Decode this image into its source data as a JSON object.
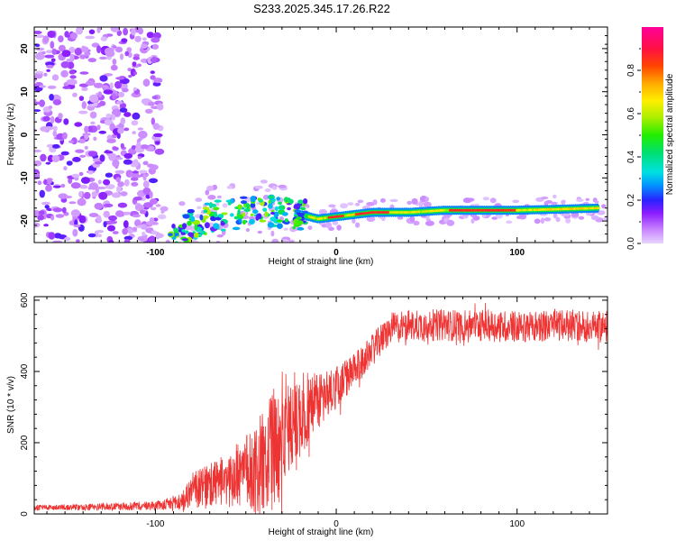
{
  "title": "S233.2025.345.17.26.R22",
  "chart_data": [
    {
      "type": "heatmap",
      "name": "spectrogram",
      "xlabel": "Height of straight line (km)",
      "ylabel": "Frequency (Hz)",
      "xlim": [
        -167,
        150
      ],
      "ylim": [
        -25,
        25
      ],
      "xticks": [
        -100,
        0,
        100
      ],
      "xtick_labels": [
        "-100",
        "0",
        "100"
      ],
      "yticks": [
        -20,
        -10,
        0,
        10,
        20
      ],
      "ytick_labels": [
        "-20",
        "-10",
        "0",
        "10",
        "20"
      ],
      "ridge": {
        "x": [
          -90,
          -80,
          -70,
          -60,
          -50,
          -40,
          -30,
          -20,
          -10,
          0,
          20,
          40,
          60,
          80,
          100,
          120,
          145
        ],
        "frequency": [
          -24,
          -21,
          -19,
          -18.5,
          -18,
          -17.5,
          -18,
          -18.5,
          -19.5,
          -19,
          -18,
          -18,
          -17.5,
          -17.5,
          -17.5,
          -17.3,
          -17
        ]
      },
      "colorbar": {
        "label": "Normalized spectral amplitude",
        "range": [
          0,
          1
        ],
        "ticks": [
          0.0,
          0.2,
          0.4,
          0.6,
          0.8
        ],
        "tick_labels": [
          "0.0",
          "0.2",
          "0.4",
          "0.6",
          "0.8"
        ]
      }
    },
    {
      "type": "line",
      "name": "snr",
      "xlabel": "Height of straight line (km)",
      "ylabel": "SNR (10 * v/v)",
      "xlim": [
        -167,
        150
      ],
      "ylim": [
        0,
        610
      ],
      "xticks": [
        -100,
        0,
        100
      ],
      "xtick_labels": [
        "-100",
        "0",
        "100"
      ],
      "yticks": [
        0,
        200,
        400,
        600
      ],
      "ytick_labels": [
        "0",
        "200",
        "400",
        "600"
      ],
      "color": "#ee3333",
      "series": [
        {
          "name": "SNR",
          "x": [
            -167,
            -150,
            -130,
            -110,
            -95,
            -85,
            -80,
            -70,
            -60,
            -50,
            -40,
            -35,
            -30,
            -25,
            -20,
            -15,
            -10,
            -5,
            0,
            5,
            10,
            15,
            20,
            25,
            30,
            40,
            60,
            80,
            100,
            120,
            150
          ],
          "mean": [
            18,
            18,
            20,
            22,
            25,
            35,
            65,
            80,
            95,
            120,
            140,
            180,
            220,
            260,
            270,
            300,
            320,
            340,
            355,
            380,
            400,
            430,
            460,
            490,
            520,
            530,
            530,
            530,
            525,
            530,
            525
          ],
          "spread": [
            8,
            8,
            10,
            12,
            15,
            30,
            50,
            60,
            80,
            110,
            150,
            170,
            180,
            150,
            120,
            110,
            90,
            70,
            60,
            55,
            50,
            45,
            45,
            45,
            45,
            45,
            45,
            45,
            45,
            45,
            45
          ]
        }
      ]
    }
  ]
}
